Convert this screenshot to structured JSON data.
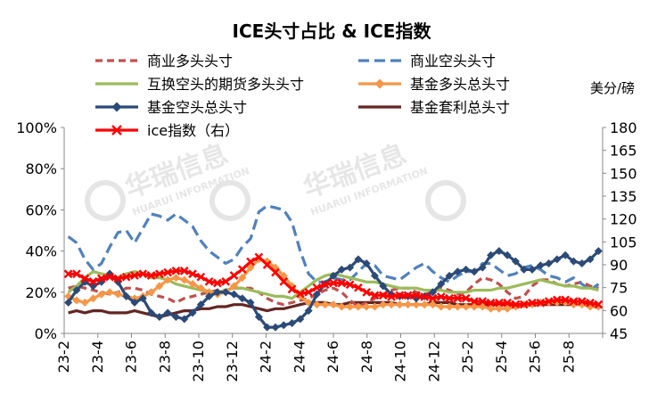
{
  "chart_data": {
    "type": "line",
    "title": "ICE头寸占比 & ICE指数",
    "ylim_left": [
      0,
      100
    ],
    "ylim_right": [
      45,
      180
    ],
    "left_ticks": [
      "0%",
      "20%",
      "40%",
      "60%",
      "80%",
      "100%"
    ],
    "right_ticks": [
      "45",
      "60",
      "75",
      "90",
      "105",
      "120",
      "135",
      "150",
      "165",
      "180"
    ],
    "right_unit": "美分/磅",
    "x_tick_labels": [
      "23-2",
      "23-4",
      "23-6",
      "23-8",
      "23-10",
      "23-12",
      "24-2",
      "24-4",
      "24-6",
      "24-8",
      "24-10",
      "24-12",
      "25-2",
      "25-4",
      "25-6",
      "25-8"
    ],
    "legend_position": "top",
    "watermark": {
      "cn": "华瑞信息",
      "en": "HUARUI INFORMATION"
    },
    "series": [
      {
        "name": "商业多头头寸",
        "axis": "left",
        "color": "#c0504d",
        "style": "dash-short",
        "marker": "none",
        "values": [
          22,
          23,
          22,
          21,
          20,
          19,
          20,
          22,
          22,
          21,
          19,
          18,
          17,
          15,
          17,
          18,
          19,
          20,
          21,
          21,
          22,
          22,
          22,
          20,
          17,
          15,
          14,
          15,
          16,
          17,
          19,
          21,
          22,
          20,
          16,
          13,
          15,
          17,
          19,
          21,
          22,
          22,
          20,
          19,
          20,
          22,
          21,
          19,
          20,
          24,
          27,
          26,
          24,
          20,
          17,
          18,
          23,
          26,
          26,
          24,
          23,
          24,
          25,
          23,
          22
        ]
      },
      {
        "name": "商业空头头寸",
        "axis": "left",
        "color": "#4f81bd",
        "style": "dash-long",
        "marker": "none",
        "values": [
          47,
          44,
          36,
          31,
          34,
          42,
          49,
          50,
          44,
          51,
          58,
          57,
          55,
          58,
          55,
          52,
          45,
          40,
          37,
          34,
          36,
          42,
          46,
          59,
          62,
          61,
          60,
          54,
          40,
          29,
          25,
          25,
          27,
          26,
          26,
          30,
          34,
          33,
          28,
          27,
          26,
          29,
          32,
          34,
          30,
          27,
          25,
          28,
          30,
          30,
          34,
          34,
          31,
          28,
          29,
          32,
          33,
          31,
          28,
          27,
          25,
          27,
          24,
          21,
          24
        ]
      },
      {
        "name": "互换空头的期货多头头寸",
        "axis": "left",
        "color": "#9bbb59",
        "style": "solid",
        "marker": "none",
        "values": [
          20,
          23,
          27,
          30,
          29,
          28,
          27,
          29,
          30,
          29,
          27,
          27,
          26,
          24,
          23,
          22,
          21,
          20,
          20,
          21,
          22,
          22,
          21,
          20,
          19,
          18,
          18,
          17,
          20,
          23,
          26,
          28,
          29,
          28,
          27,
          26,
          25,
          25,
          24,
          23,
          22,
          22,
          22,
          21,
          21,
          21,
          20,
          20,
          20,
          21,
          21,
          21,
          22,
          22,
          23,
          24,
          25,
          26,
          25,
          24,
          23,
          23,
          22,
          22,
          21
        ]
      },
      {
        "name": "基金多头总头寸",
        "axis": "left",
        "color": "#f79646",
        "style": "solid",
        "marker": "diamond",
        "values": [
          18,
          16,
          15,
          17,
          19,
          20,
          19,
          18,
          17,
          18,
          20,
          23,
          26,
          27,
          26,
          24,
          22,
          20,
          19,
          20,
          23,
          27,
          32,
          36,
          35,
          32,
          28,
          23,
          18,
          15,
          14,
          14,
          14,
          13,
          13,
          13,
          13,
          13,
          14,
          14,
          14,
          14,
          14,
          14,
          14,
          13,
          13,
          13,
          13,
          13,
          13,
          12,
          12,
          12,
          13,
          14,
          14,
          15,
          15,
          15,
          15,
          14,
          14,
          13,
          13
        ]
      },
      {
        "name": "基金空头总头寸",
        "axis": "left",
        "color": "#2b4a78",
        "style": "solid",
        "marker": "diamond",
        "values": [
          15,
          21,
          25,
          23,
          25,
          29,
          25,
          18,
          15,
          17,
          10,
          8,
          10,
          8,
          7,
          10,
          14,
          18,
          20,
          20,
          19,
          17,
          15,
          8,
          3,
          3,
          4,
          5,
          7,
          11,
          19,
          24,
          28,
          31,
          32,
          36,
          34,
          28,
          23,
          19,
          18,
          18,
          17,
          18,
          20,
          24,
          28,
          30,
          31,
          30,
          32,
          38,
          40,
          38,
          35,
          31,
          31,
          33,
          34,
          36,
          38,
          35,
          34,
          36,
          40
        ]
      },
      {
        "name": "基金套利总头寸",
        "axis": "left",
        "color": "#632523",
        "style": "solid",
        "marker": "none",
        "values": [
          10,
          11,
          10,
          11,
          11,
          10,
          10,
          10,
          11,
          10,
          9,
          8,
          9,
          10,
          11,
          11,
          12,
          12,
          13,
          13,
          14,
          14,
          13,
          12,
          11,
          12,
          12,
          13,
          14,
          15,
          15,
          15,
          14,
          14,
          15,
          15,
          15,
          15,
          15,
          15,
          14,
          14,
          14,
          14,
          15,
          15,
          15,
          14,
          14,
          14,
          14,
          14,
          14,
          14,
          14,
          14,
          14,
          14,
          14,
          14,
          14,
          14,
          14,
          14,
          14
        ]
      },
      {
        "name": "ice指数（右）",
        "axis": "right",
        "color": "#ff0000",
        "style": "solid",
        "marker": "x",
        "values": [
          84,
          84,
          81,
          79,
          81,
          82,
          81,
          82,
          83,
          84,
          83,
          84,
          85,
          86,
          86,
          84,
          82,
          79,
          78,
          79,
          83,
          87,
          92,
          95,
          90,
          85,
          79,
          74,
          71,
          72,
          75,
          77,
          78,
          78,
          77,
          75,
          72,
          70,
          70,
          69,
          70,
          70,
          70,
          69,
          68,
          69,
          68,
          68,
          68,
          66,
          66,
          65,
          65,
          65,
          64,
          64,
          65,
          65,
          66,
          67,
          67,
          66,
          66,
          65,
          64
        ]
      }
    ]
  }
}
